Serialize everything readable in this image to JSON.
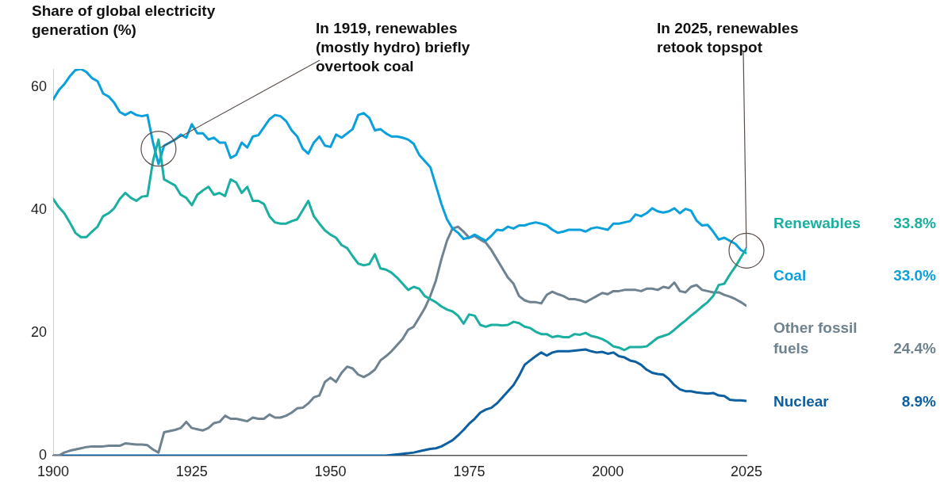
{
  "chart_data": {
    "type": "line",
    "x": [
      1900,
      1901,
      1902,
      1903,
      1904,
      1905,
      1906,
      1907,
      1908,
      1909,
      1910,
      1911,
      1912,
      1913,
      1914,
      1915,
      1916,
      1917,
      1918,
      1919,
      1920,
      1921,
      1922,
      1923,
      1924,
      1925,
      1926,
      1927,
      1928,
      1929,
      1930,
      1931,
      1932,
      1933,
      1934,
      1935,
      1936,
      1937,
      1938,
      1939,
      1940,
      1941,
      1942,
      1943,
      1944,
      1945,
      1946,
      1947,
      1948,
      1949,
      1950,
      1951,
      1952,
      1953,
      1954,
      1955,
      1956,
      1957,
      1958,
      1959,
      1960,
      1961,
      1962,
      1963,
      1964,
      1965,
      1966,
      1967,
      1968,
      1969,
      1970,
      1971,
      1972,
      1973,
      1974,
      1975,
      1976,
      1977,
      1978,
      1979,
      1980,
      1981,
      1982,
      1983,
      1984,
      1985,
      1986,
      1987,
      1988,
      1989,
      1990,
      1991,
      1992,
      1993,
      1994,
      1995,
      1996,
      1997,
      1998,
      1999,
      2000,
      2001,
      2002,
      2003,
      2004,
      2005,
      2006,
      2007,
      2008,
      2009,
      2010,
      2011,
      2012,
      2013,
      2014,
      2015,
      2016,
      2017,
      2018,
      2019,
      2020,
      2021,
      2022,
      2023,
      2024,
      2025
    ],
    "xlim": [
      1900,
      2025
    ],
    "xticks": [
      1900,
      1925,
      1950,
      1975,
      2000,
      2025
    ],
    "ylim": [
      0,
      63
    ],
    "yticks": [
      0,
      20,
      40,
      60
    ],
    "grid": false,
    "legend": false,
    "marker": "none",
    "line_style": "solid",
    "annotations": [
      "Share of global electricity generation (%)",
      {
        "text": "In 1919, renewables (mostly hydro) briefly overtook coal",
        "x": 1919,
        "y": 50
      },
      {
        "text": "In 2025, renewables retook topspot",
        "x": 2025,
        "y": 33.4
      },
      "33.8%",
      "33.0%",
      "24.4%",
      "8.9%"
    ],
    "series": [
      {
        "name": "Renewables",
        "color": "#1aafa0",
        "values": [
          41.8,
          40.5,
          39.5,
          38,
          36.3,
          35.6,
          35.6,
          36.5,
          37.3,
          39,
          39.5,
          40.3,
          41.8,
          42.8,
          42,
          41.5,
          42.2,
          42.3,
          48,
          51.5,
          45,
          44.5,
          44,
          42.5,
          42,
          40.8,
          42.5,
          43.2,
          43.8,
          42.5,
          42.8,
          42.3,
          45,
          44.5,
          42.8,
          43.8,
          41.5,
          41.5,
          41,
          39,
          38,
          37.8,
          37.8,
          38.2,
          38.5,
          40,
          41.5,
          39,
          37.8,
          36.7,
          36,
          35.5,
          34.3,
          33.8,
          32.5,
          31.3,
          31,
          31.2,
          32.8,
          30.5,
          30.3,
          29.8,
          29,
          28,
          27,
          27.5,
          27.2,
          26,
          25.5,
          25,
          24.3,
          23.8,
          23.5,
          22.8,
          21.5,
          23,
          22.8,
          21.3,
          21,
          21.3,
          21.3,
          21.2,
          21.3,
          21.8,
          21.6,
          21,
          20.8,
          20.2,
          19.8,
          19.8,
          19.3,
          19.5,
          19.3,
          19.3,
          19.8,
          19.7,
          20,
          19.5,
          19.3,
          19,
          18.5,
          17.8,
          17.6,
          17.2,
          17.7,
          17.7,
          17.7,
          17.8,
          18.5,
          19.2,
          19.5,
          19.8,
          20.5,
          21.3,
          22,
          22.8,
          23.5,
          24.3,
          25,
          26,
          27.8,
          28,
          29.5,
          30.8,
          32.3,
          33.8
        ]
      },
      {
        "name": "Coal",
        "color": "#0aa0dc",
        "values": [
          58,
          59.5,
          60.5,
          61.8,
          62.8,
          63,
          62.5,
          61.5,
          61,
          59,
          58.5,
          57.5,
          56,
          55.5,
          56,
          55.5,
          55.3,
          55.5,
          51,
          47.5,
          50.5,
          51,
          51.5,
          52.3,
          51.8,
          54,
          52.5,
          52.5,
          51.5,
          51.8,
          51,
          51,
          48.5,
          49,
          51,
          50.2,
          52,
          52.2,
          53.5,
          54.8,
          55.5,
          55.3,
          54.5,
          53,
          52,
          50,
          49.2,
          51,
          52,
          50.5,
          50.3,
          52.3,
          51.8,
          52.5,
          53.2,
          55.5,
          55.8,
          55,
          53,
          53.2,
          52.5,
          52,
          52,
          51.8,
          51.5,
          50.8,
          49,
          48,
          47,
          44,
          41,
          38.5,
          37,
          36.3,
          35.3,
          35.5,
          36,
          35.5,
          35,
          35.8,
          36.8,
          36.7,
          37.3,
          37,
          37.5,
          37.5,
          37.8,
          38,
          37.8,
          37.5,
          36.8,
          36.3,
          36.5,
          36.8,
          36.8,
          36.8,
          36.5,
          37,
          37.2,
          37,
          36.8,
          37.8,
          37.8,
          38,
          38.2,
          39.3,
          39,
          39.5,
          40.3,
          39.8,
          39.6,
          39.8,
          40.3,
          39.5,
          40.2,
          39.9,
          38.3,
          37.5,
          37.6,
          36.5,
          35.2,
          35.5,
          35,
          34.5,
          33.5,
          33.0
        ]
      },
      {
        "name": "Other fossil fuels",
        "color": "#6f8290",
        "values": [
          0,
          0,
          0.5,
          0.8,
          1,
          1.2,
          1.4,
          1.5,
          1.5,
          1.5,
          1.6,
          1.6,
          1.6,
          2,
          1.9,
          1.8,
          1.8,
          1.7,
          1,
          0.5,
          3.8,
          4,
          4.2,
          4.5,
          5.5,
          4.5,
          4.3,
          4.1,
          4.5,
          5.3,
          5.5,
          6.5,
          6,
          6,
          5.8,
          5.6,
          6.2,
          6,
          6,
          6.7,
          6.2,
          6.2,
          6.5,
          7,
          7.7,
          7.8,
          8.5,
          9.5,
          9.8,
          12,
          12.7,
          12,
          13.5,
          14.5,
          14.2,
          13.2,
          12.8,
          13.3,
          14,
          15.5,
          16.2,
          17,
          18,
          19,
          20.5,
          21,
          22.5,
          24,
          26,
          28.5,
          32,
          35,
          37,
          37.3,
          36.5,
          35.5,
          35.8,
          35.2,
          34.7,
          33.5,
          32,
          30.5,
          29,
          28,
          26,
          25.3,
          25,
          25,
          24.8,
          26.2,
          26.7,
          26.3,
          26,
          25.5,
          25.5,
          25.3,
          25,
          25.5,
          26,
          26.5,
          26.3,
          26.8,
          26.8,
          27,
          27,
          27,
          26.8,
          27.2,
          27.2,
          27,
          27.5,
          27.3,
          28.2,
          26.8,
          26.6,
          27.5,
          27.8,
          27,
          26.8,
          26.6,
          26.6,
          26.2,
          25.9,
          25.5,
          25,
          24.4
        ]
      },
      {
        "name": "Nuclear",
        "color": "#0c5fa0",
        "values": [
          0,
          0,
          0,
          0,
          0,
          0,
          0,
          0,
          0,
          0,
          0,
          0,
          0,
          0,
          0,
          0,
          0,
          0,
          0,
          0,
          0,
          0,
          0,
          0,
          0,
          0,
          0,
          0,
          0,
          0,
          0,
          0,
          0,
          0,
          0,
          0,
          0,
          0,
          0,
          0,
          0,
          0,
          0,
          0,
          0,
          0,
          0,
          0,
          0,
          0,
          0,
          0,
          0,
          0,
          0,
          0,
          0,
          0,
          0,
          0,
          0,
          0.1,
          0.2,
          0.3,
          0.4,
          0.5,
          0.7,
          0.9,
          1.1,
          1.2,
          1.5,
          2,
          2.5,
          3.3,
          4.2,
          5.2,
          6,
          7,
          7.5,
          7.8,
          8.5,
          9.5,
          10.5,
          11.5,
          13,
          14.8,
          15.5,
          16.2,
          16.8,
          16.3,
          16.8,
          17,
          17,
          17,
          17.1,
          17.2,
          17.3,
          17,
          16.8,
          16.9,
          16.6,
          16.8,
          16.2,
          16,
          15.5,
          15.3,
          14.8,
          14,
          13.5,
          13.3,
          13.2,
          12.5,
          11.5,
          10.8,
          10.5,
          10.5,
          10.3,
          10.2,
          10.1,
          10.2,
          9.8,
          9.7,
          9.1,
          9,
          9,
          8.9
        ]
      }
    ]
  }
}
